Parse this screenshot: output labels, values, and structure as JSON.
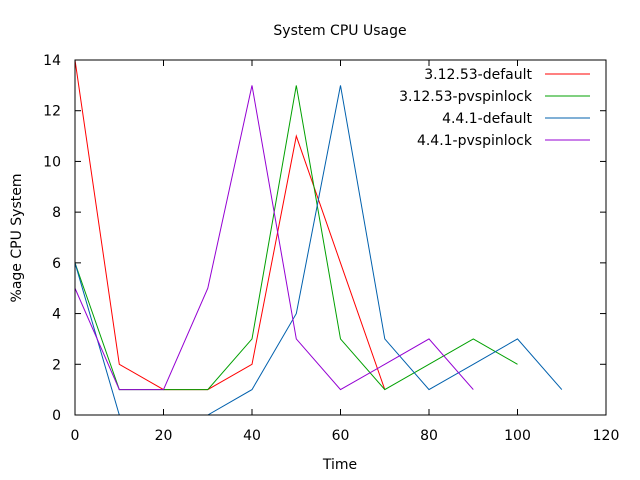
{
  "chart_data": {
    "type": "line",
    "title": "System CPU Usage",
    "xlabel": "Time",
    "ylabel": "%age CPU System",
    "xlim": [
      0,
      120
    ],
    "ylim": [
      0,
      14
    ],
    "xticks": [
      "0",
      "20",
      "40",
      "60",
      "80",
      "100",
      "120"
    ],
    "yticks": [
      "0",
      "2",
      "4",
      "6",
      "8",
      "10",
      "12",
      "14"
    ],
    "grid": false,
    "legend_position": "top-right",
    "series": [
      {
        "name": "3.12.53-default",
        "color": "#ff0000",
        "x": [
          0,
          10,
          20,
          30,
          40,
          50,
          60,
          70
        ],
        "y": [
          14,
          2,
          1,
          1,
          2,
          11,
          6,
          1
        ]
      },
      {
        "name": "3.12.53-pvspinlock",
        "color": "#00a000",
        "x": [
          0,
          10,
          20,
          30,
          40,
          50,
          60,
          70,
          80,
          90,
          100
        ],
        "y": [
          6,
          1,
          1,
          1,
          3,
          13,
          3,
          1,
          2,
          3,
          2
        ]
      },
      {
        "name": "4.4.1-default",
        "color": "#0060ad",
        "x": [
          0,
          10,
          20,
          30,
          40,
          50,
          60,
          70,
          80,
          90,
          100,
          110
        ],
        "y": [
          6,
          0,
          -0.5,
          0,
          1,
          4,
          13,
          3,
          1,
          2,
          3,
          1
        ]
      },
      {
        "name": "4.4.1-pvspinlock",
        "color": "#9400d3",
        "x": [
          0,
          10,
          20,
          30,
          40,
          50,
          60,
          70,
          80,
          90
        ],
        "y": [
          5,
          1,
          1,
          5,
          13,
          3,
          1,
          2,
          3,
          1
        ]
      }
    ]
  }
}
